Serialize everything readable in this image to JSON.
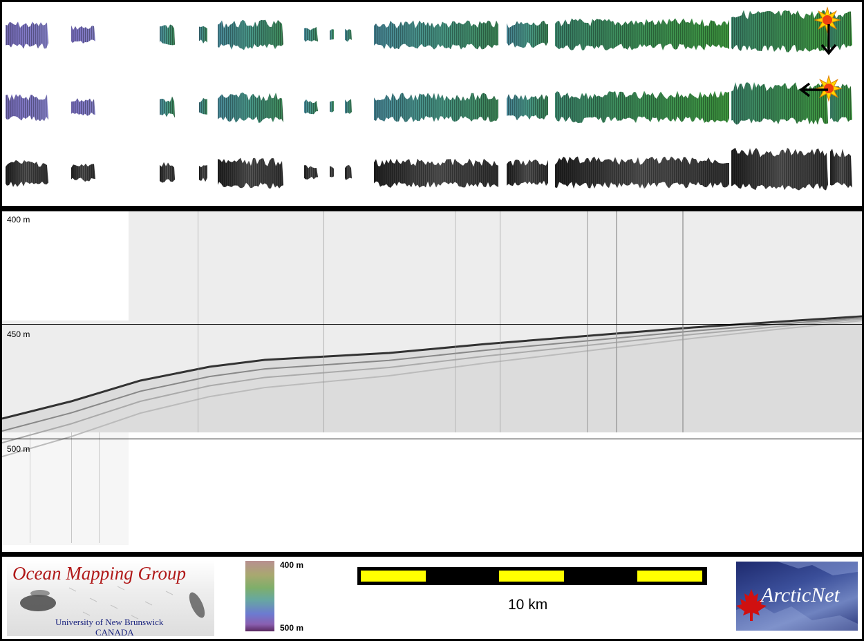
{
  "profile": {
    "depth_labels": [
      "400 m",
      "450 m",
      "500 m"
    ]
  },
  "legend": {
    "colorbar_top": "400 m",
    "colorbar_bottom": "500 m",
    "scale_label": "10 km"
  },
  "logos": {
    "omg_title": "Ocean Mapping Group",
    "omg_university": "University of New Brunswick",
    "omg_country": "CANADA",
    "arcticnet": "ArcticNet"
  },
  "icons": [
    "sun-icon",
    "arrow-down-icon",
    "arrow-left-icon",
    "maple-leaf-icon"
  ]
}
